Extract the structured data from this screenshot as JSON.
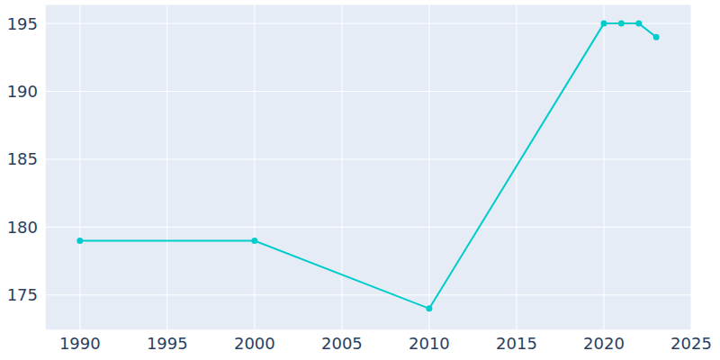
{
  "chart_data": {
    "type": "line",
    "x": [
      1990,
      2000,
      2010,
      2020,
      2021,
      2022,
      2023
    ],
    "values": [
      179,
      179,
      174,
      195,
      195,
      195,
      194
    ],
    "color": "#00cccc",
    "marker": "circle",
    "xlim": [
      1988,
      2025
    ],
    "xticks": [
      1990,
      1995,
      2000,
      2005,
      2010,
      2015,
      2020,
      2025
    ],
    "ylim": [
      172.4,
      196.4
    ],
    "yticks": [
      175,
      180,
      185,
      190,
      195
    ],
    "grid": true
  }
}
